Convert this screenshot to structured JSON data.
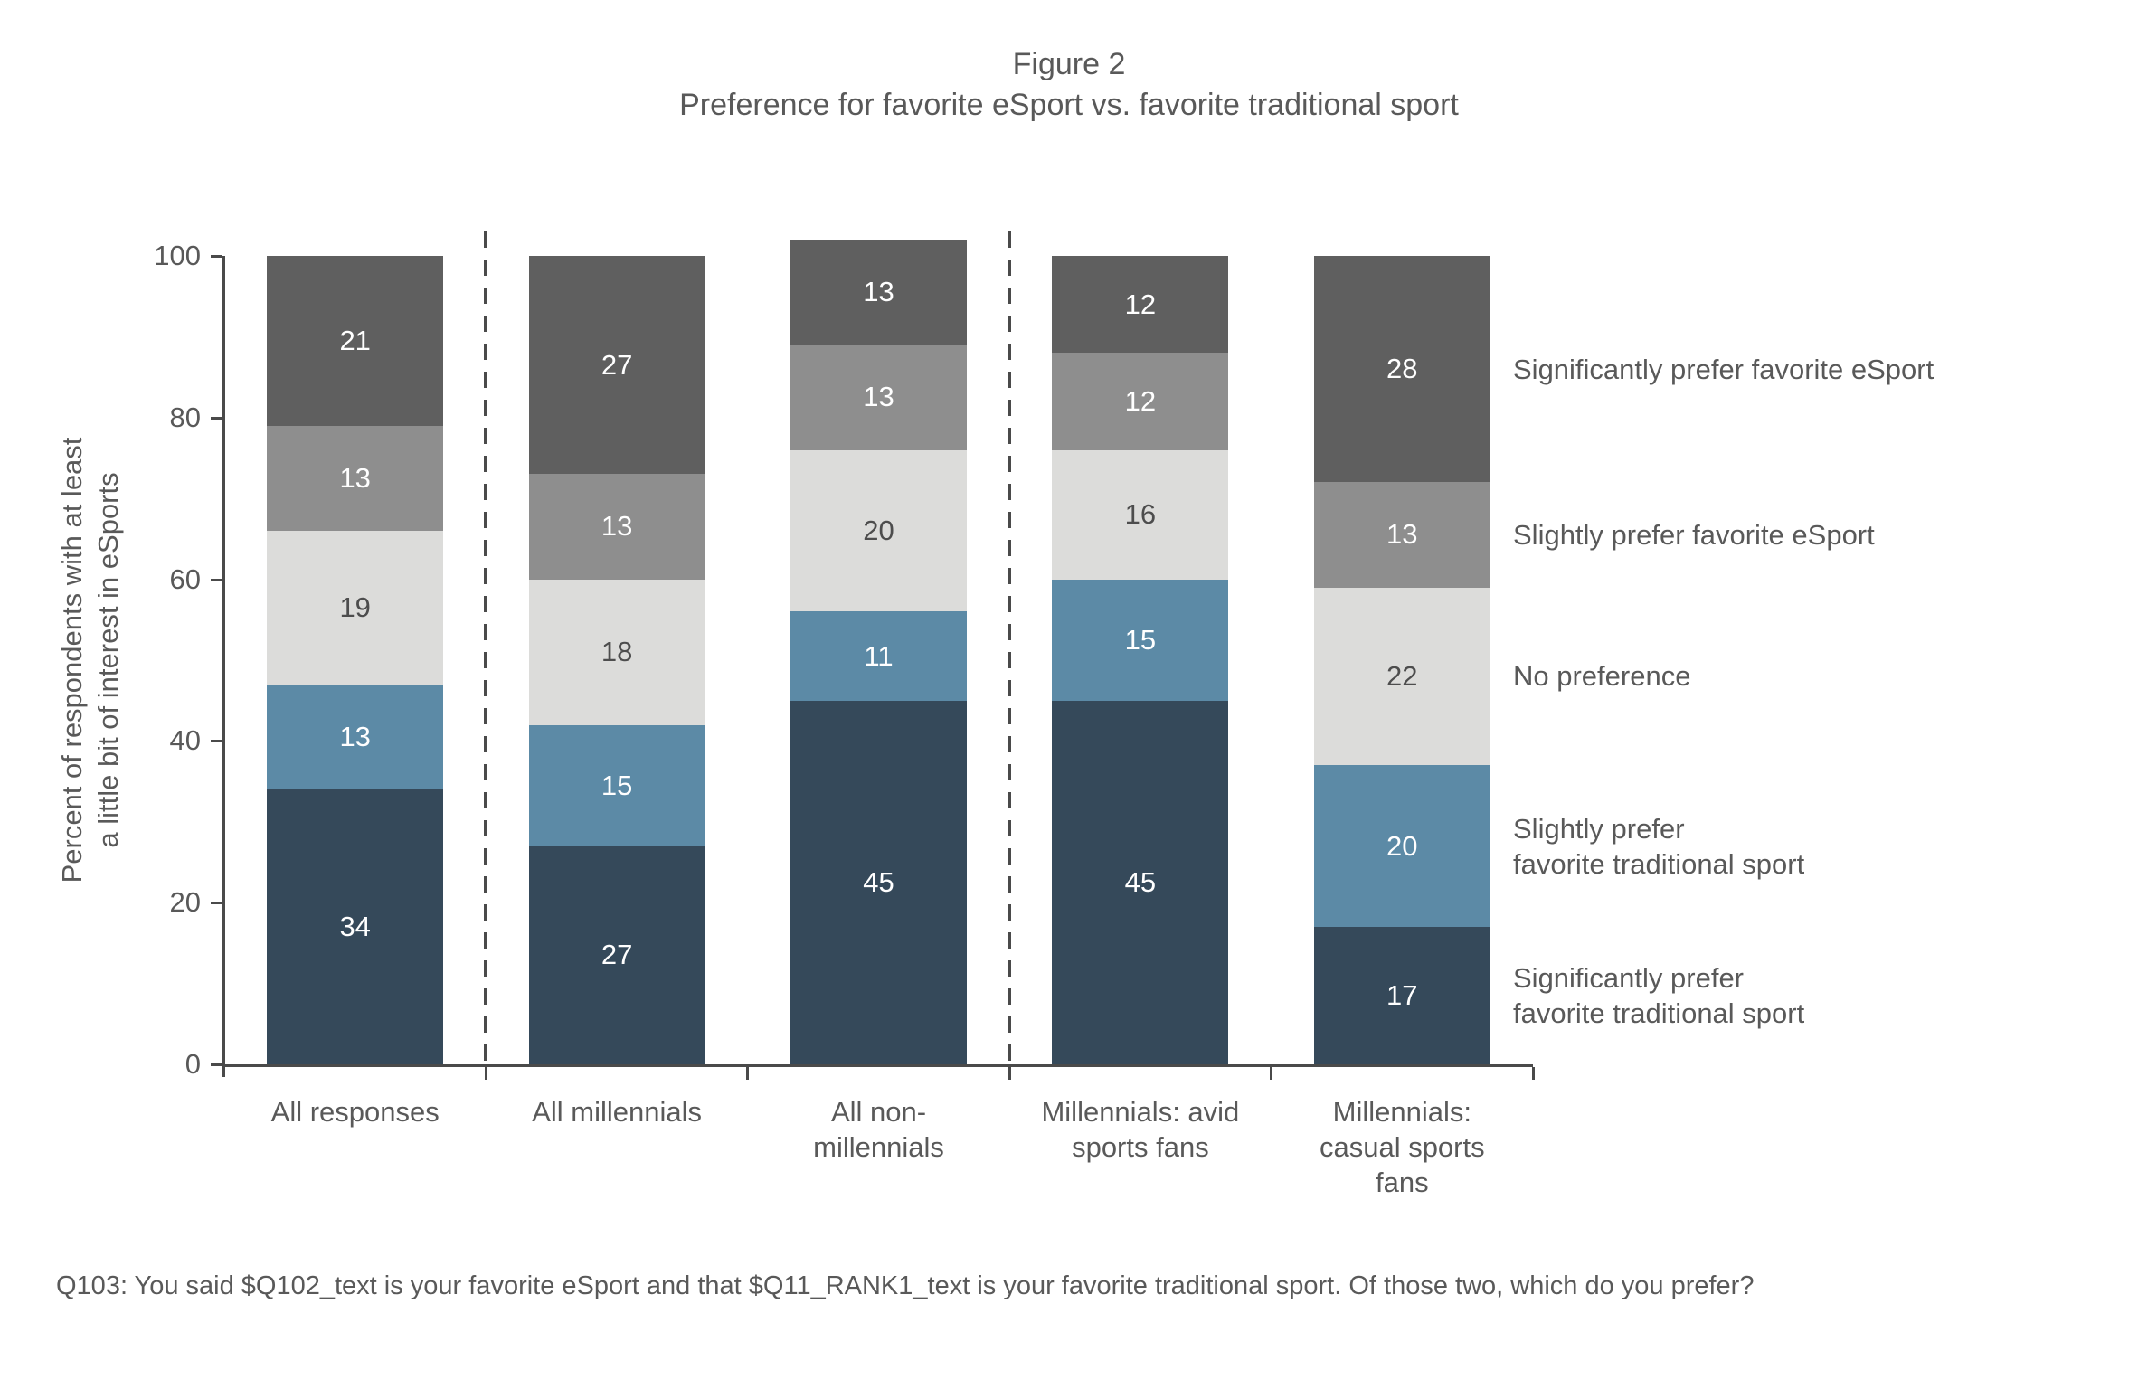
{
  "figure": {
    "title": "Figure 2",
    "subtitle": "Preference for favorite eSport vs. favorite traditional sport",
    "footnote": "Q103: You said $Q102_text is your favorite eSport and that $Q11_RANK1_text is your favorite traditional sport. Of those two, which do you prefer?"
  },
  "chart_data": {
    "type": "bar",
    "variant": "stacked-vertical",
    "title": "Figure 2",
    "subtitle": "Preference for favorite eSport vs. favorite traditional sport",
    "ylabel": "Percent of respondents with at least\na little bit of interest in eSports",
    "xlabel": "",
    "ylim": [
      0,
      100
    ],
    "yticks": [
      0,
      20,
      40,
      60,
      80,
      100
    ],
    "grid": false,
    "legend_position": "right",
    "categories": [
      "All responses",
      "All millennials",
      "All non-\nmillennials",
      "Millennials: avid\nsports fans",
      "Millennials:\ncasual sports\nfans"
    ],
    "series": [
      {
        "name": "Significantly prefer\nfavorite traditional sport",
        "color": "#35495a",
        "label_color": "#ffffff",
        "values": [
          34,
          27,
          45,
          45,
          17
        ]
      },
      {
        "name": "Slightly prefer\nfavorite traditional sport",
        "color": "#5c8aa6",
        "label_color": "#ffffff",
        "values": [
          13,
          15,
          11,
          15,
          20
        ]
      },
      {
        "name": "No preference",
        "color": "#dcdcda",
        "label_color": "#4d4d4d",
        "values": [
          19,
          18,
          20,
          16,
          22
        ]
      },
      {
        "name": "Slightly prefer favorite eSport",
        "color": "#8e8e8e",
        "label_color": "#ffffff",
        "values": [
          13,
          13,
          13,
          12,
          13
        ]
      },
      {
        "name": "Significantly prefer favorite eSport",
        "color": "#5f5f5f",
        "label_color": "#ffffff",
        "values": [
          21,
          27,
          13,
          12,
          28
        ]
      }
    ],
    "separators_after_category": [
      0,
      2
    ],
    "colors": {
      "axis": "#4a4a4a",
      "text": "#595959",
      "light_segment_text": "#4d4d4d"
    }
  }
}
